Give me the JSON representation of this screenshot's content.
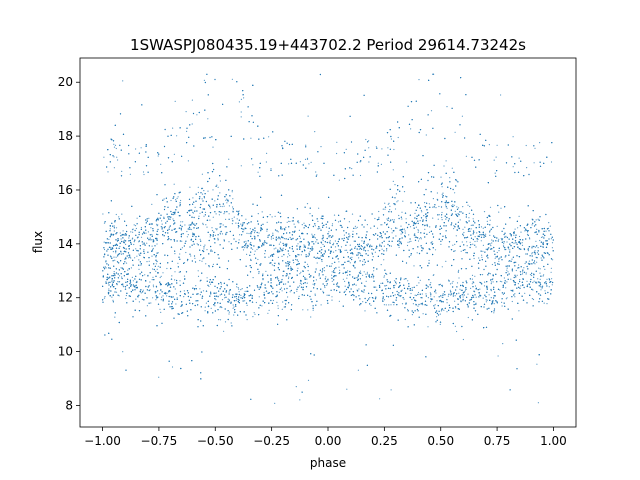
{
  "chart_data": {
    "type": "scatter",
    "title": "1SWASPJ080435.19+443702.2 Period 29614.73242s",
    "xlabel": "phase",
    "ylabel": "flux",
    "xlim": [
      -1.1,
      1.1
    ],
    "ylim": [
      7.2,
      20.9
    ],
    "xticks": [
      -1.0,
      -0.75,
      -0.5,
      -0.25,
      0.0,
      0.25,
      0.5,
      0.75,
      1.0
    ],
    "xtick_labels": [
      "−1.00",
      "−0.75",
      "−0.50",
      "−0.25",
      "0.00",
      "0.25",
      "0.50",
      "0.75",
      "1.00"
    ],
    "yticks": [
      8,
      10,
      12,
      14,
      16,
      18,
      20
    ],
    "ytick_labels": [
      "8",
      "10",
      "12",
      "14",
      "16",
      "18",
      "20"
    ],
    "grid": false,
    "legend": "none",
    "marker_color": "#1f77b4",
    "phase_range": [
      -1.0,
      1.0
    ],
    "flux_range_observed": [
      7.8,
      20.3
    ],
    "dense_bands": [
      {
        "name": "upper band",
        "center_flux": 14.0,
        "low": 13.4,
        "high": 16.2
      },
      {
        "name": "lower band",
        "center_flux": 12.3,
        "low": 11.6,
        "high": 13.3
      }
    ],
    "features": [
      {
        "phase": -0.5,
        "max_flux": 18.5
      },
      {
        "phase": 0.5,
        "max_flux": 18.5
      },
      {
        "phase": -0.7,
        "max_flux": 16.6
      },
      {
        "phase": 0.3,
        "max_flux": 16.6
      }
    ]
  }
}
